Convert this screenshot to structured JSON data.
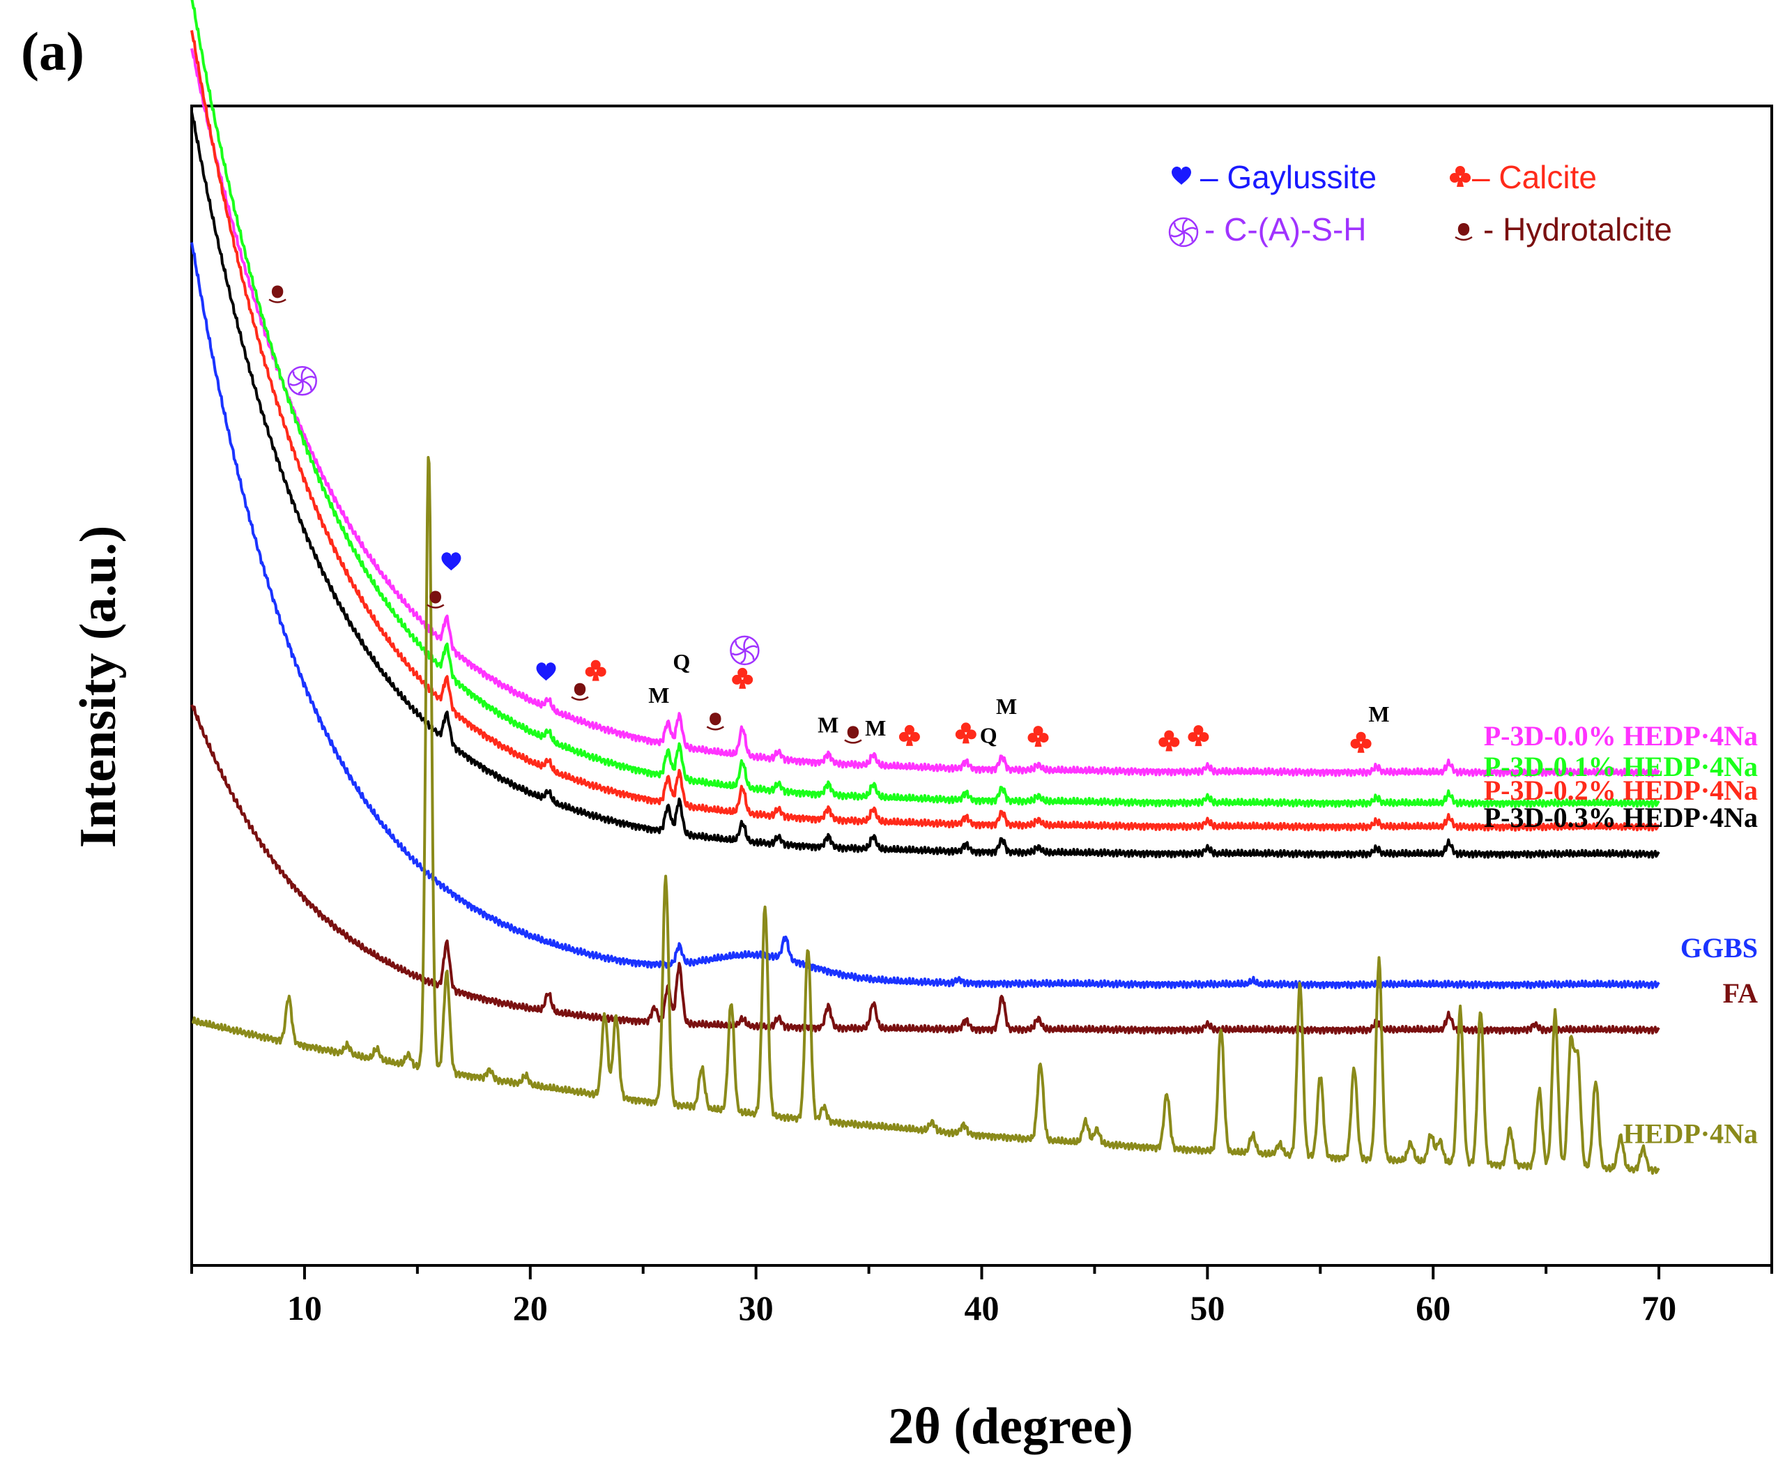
{
  "panel_label": "(a)",
  "chart_data": {
    "type": "line",
    "title": "",
    "xlabel": "2θ (degree)",
    "ylabel": "Intensity (a.u.)",
    "xlim": [
      5,
      75
    ],
    "x_ticks": [
      10,
      20,
      30,
      40,
      50,
      60,
      70
    ],
    "y_ticks_shown": false,
    "grid": false,
    "legend": {
      "placement": "top-right",
      "entries": [
        {
          "symbol": "heart-icon",
          "text": "– Gaylussite",
          "color": "#1a1aff"
        },
        {
          "symbol": "club-icon",
          "text": "– Calcite",
          "color": "#ff2a1a"
        },
        {
          "symbol": "swirl-icon",
          "text": "- C-(A)-S-H",
          "color": "#a033ff"
        },
        {
          "symbol": "drop-icon",
          "text": "- Hydrotalcite",
          "color": "#7a1010"
        }
      ]
    },
    "series": [
      {
        "name": "P-3D-0.0% HEDP·4Na",
        "color": "#ff33ff",
        "baseline": 2.72,
        "amp": 4.0,
        "decay": 6.5,
        "peaks": [
          [
            16.3,
            0.15
          ],
          [
            20.8,
            0.05
          ],
          [
            26.1,
            0.12
          ],
          [
            26.6,
            0.17
          ],
          [
            29.4,
            0.15
          ],
          [
            31.0,
            0.04
          ],
          [
            33.2,
            0.05
          ],
          [
            35.2,
            0.06
          ],
          [
            39.3,
            0.04
          ],
          [
            40.9,
            0.07
          ],
          [
            42.5,
            0.03
          ],
          [
            50.0,
            0.03
          ],
          [
            57.5,
            0.03
          ],
          [
            60.7,
            0.05
          ]
        ]
      },
      {
        "name": "P-3D-0.1% HEDP·4Na",
        "color": "#1aff1a",
        "baseline": 2.55,
        "amp": 4.45,
        "decay": 6.2,
        "peaks": [
          [
            16.3,
            0.15
          ],
          [
            20.8,
            0.05
          ],
          [
            26.1,
            0.14
          ],
          [
            26.6,
            0.18
          ],
          [
            29.4,
            0.14
          ],
          [
            31.0,
            0.04
          ],
          [
            33.2,
            0.06
          ],
          [
            35.2,
            0.07
          ],
          [
            39.3,
            0.04
          ],
          [
            40.9,
            0.07
          ],
          [
            42.5,
            0.03
          ],
          [
            50.0,
            0.03
          ],
          [
            57.5,
            0.03
          ],
          [
            60.7,
            0.05
          ]
        ]
      },
      {
        "name": "P-3D-0.2% HEDP·4Na",
        "color": "#ff2a1a",
        "baseline": 2.42,
        "amp": 4.4,
        "decay": 6.0,
        "peaks": [
          [
            16.3,
            0.15
          ],
          [
            20.8,
            0.05
          ],
          [
            26.1,
            0.14
          ],
          [
            26.6,
            0.18
          ],
          [
            29.4,
            0.14
          ],
          [
            31.0,
            0.04
          ],
          [
            33.2,
            0.06
          ],
          [
            35.2,
            0.07
          ],
          [
            39.3,
            0.04
          ],
          [
            40.9,
            0.07
          ],
          [
            42.5,
            0.03
          ],
          [
            50.0,
            0.03
          ],
          [
            57.5,
            0.03
          ],
          [
            60.7,
            0.05
          ]
        ]
      },
      {
        "name": "P-3D-0.3% HEDP·4Na",
        "color": "#000000",
        "baseline": 2.27,
        "amp": 4.1,
        "decay": 6.0,
        "peaks": [
          [
            16.3,
            0.15
          ],
          [
            20.8,
            0.05
          ],
          [
            26.1,
            0.14
          ],
          [
            26.6,
            0.18
          ],
          [
            29.4,
            0.1
          ],
          [
            31.0,
            0.04
          ],
          [
            33.2,
            0.06
          ],
          [
            35.2,
            0.07
          ],
          [
            39.3,
            0.04
          ],
          [
            40.9,
            0.07
          ],
          [
            42.5,
            0.03
          ],
          [
            50.0,
            0.03
          ],
          [
            57.5,
            0.03
          ],
          [
            60.7,
            0.06
          ]
        ]
      },
      {
        "name": "GGBS",
        "color": "#1a33ff",
        "baseline": 1.55,
        "amp": 4.1,
        "decay": 5.5,
        "hump": [
          30.2,
          0.12,
          3.2
        ],
        "peaks": [
          [
            26.6,
            0.1
          ],
          [
            31.3,
            0.12
          ],
          [
            39.0,
            0.02
          ],
          [
            52.0,
            0.02
          ]
        ]
      },
      {
        "name": "FA",
        "color": "#7a1010",
        "baseline": 1.3,
        "amp": 1.8,
        "decay": 5.5,
        "peaks": [
          [
            16.3,
            0.25
          ],
          [
            20.8,
            0.1
          ],
          [
            25.5,
            0.08
          ],
          [
            26.1,
            0.2
          ],
          [
            26.6,
            0.32
          ],
          [
            29.4,
            0.04
          ],
          [
            31.0,
            0.05
          ],
          [
            33.2,
            0.12
          ],
          [
            35.2,
            0.14
          ],
          [
            39.3,
            0.05
          ],
          [
            40.9,
            0.18
          ],
          [
            42.5,
            0.06
          ],
          [
            50.0,
            0.03
          ],
          [
            57.5,
            0.04
          ],
          [
            60.7,
            0.08
          ],
          [
            64.5,
            0.03
          ]
        ]
      },
      {
        "name": "HEDP·4Na",
        "color": "#8a8a1a",
        "baseline": 0.4,
        "amp": 0.95,
        "decay": 32,
        "peaks": [
          [
            9.3,
            0.25
          ],
          [
            11.9,
            0.05
          ],
          [
            13.2,
            0.06
          ],
          [
            14.6,
            0.06
          ],
          [
            15.5,
            3.4
          ],
          [
            16.3,
            0.55
          ],
          [
            18.2,
            0.05
          ],
          [
            19.8,
            0.05
          ],
          [
            23.3,
            0.45
          ],
          [
            23.8,
            0.45
          ],
          [
            26.0,
            1.25
          ],
          [
            27.6,
            0.22
          ],
          [
            28.9,
            0.6
          ],
          [
            30.4,
            1.15
          ],
          [
            32.3,
            0.95
          ],
          [
            33.0,
            0.08
          ],
          [
            37.8,
            0.05
          ],
          [
            39.2,
            0.05
          ],
          [
            42.6,
            0.42
          ],
          [
            44.6,
            0.12
          ],
          [
            45.1,
            0.08
          ],
          [
            48.2,
            0.3
          ],
          [
            50.6,
            0.68
          ],
          [
            52.0,
            0.1
          ],
          [
            53.2,
            0.06
          ],
          [
            54.1,
            0.95
          ],
          [
            55.0,
            0.45
          ],
          [
            56.5,
            0.5
          ],
          [
            57.6,
            1.1
          ],
          [
            59.0,
            0.1
          ],
          [
            59.9,
            0.15
          ],
          [
            60.3,
            0.12
          ],
          [
            61.2,
            0.85
          ],
          [
            62.1,
            0.85
          ],
          [
            63.4,
            0.2
          ],
          [
            64.7,
            0.42
          ],
          [
            65.4,
            0.85
          ],
          [
            66.1,
            0.68
          ],
          [
            66.4,
            0.6
          ],
          [
            67.2,
            0.48
          ],
          [
            68.3,
            0.18
          ],
          [
            69.3,
            0.12
          ]
        ]
      }
    ],
    "annotations": [
      {
        "type": "drop-icon",
        "x": 8.8,
        "series": "P-3D-0.0% HEDP·4Na",
        "level": "upper"
      },
      {
        "type": "swirl-icon",
        "x": 9.9,
        "series": "P-3D-0.0% HEDP·4Na",
        "level": "lower"
      },
      {
        "type": "drop-icon",
        "x": 15.8,
        "series": "P-3D-0.0% HEDP·4Na",
        "level": "lower"
      },
      {
        "type": "heart-icon",
        "x": 16.5,
        "series": "P-3D-0.0% HEDP·4Na",
        "level": "upper"
      },
      {
        "type": "heart-icon",
        "x": 20.7,
        "series": "P-3D-0.0% HEDP·4Na",
        "level": "lower"
      },
      {
        "type": "drop-icon",
        "x": 22.2,
        "series": "P-3D-0.0% HEDP·4Na",
        "level": "lower"
      },
      {
        "type": "club-icon",
        "x": 22.9,
        "series": "P-3D-0.0% HEDP·4Na",
        "level": "upper"
      },
      {
        "type": "letter",
        "text": "M",
        "x": 25.7,
        "series": "P-3D-0.0% HEDP·4Na",
        "level": "lower"
      },
      {
        "type": "letter",
        "text": "Q",
        "x": 26.7,
        "series": "P-3D-0.0% HEDP·4Na",
        "level": "upper"
      },
      {
        "type": "drop-icon",
        "x": 28.2,
        "series": "P-3D-0.0% HEDP·4Na",
        "level": "lower"
      },
      {
        "type": "swirl-icon",
        "x": 29.5,
        "series": "P-3D-0.0% HEDP·4Na",
        "level": "high"
      },
      {
        "type": "club-icon",
        "x": 29.4,
        "series": "P-3D-0.0% HEDP·4Na",
        "level": "upper"
      },
      {
        "type": "letter",
        "text": "M",
        "x": 33.2,
        "series": "P-3D-0.0% HEDP·4Na",
        "level": "lower"
      },
      {
        "type": "drop-icon",
        "x": 34.3,
        "series": "P-3D-0.0% HEDP·4Na",
        "level": "lower"
      },
      {
        "type": "letter",
        "text": "M",
        "x": 35.3,
        "series": "P-3D-0.0% HEDP·4Na",
        "level": "lower"
      },
      {
        "type": "club-icon",
        "x": 36.8,
        "series": "P-3D-0.0% HEDP·4Na",
        "level": "lower"
      },
      {
        "type": "club-icon",
        "x": 39.3,
        "series": "P-3D-0.0% HEDP·4Na",
        "level": "lower"
      },
      {
        "type": "letter",
        "text": "Q",
        "x": 40.3,
        "series": "P-3D-0.0% HEDP·4Na",
        "level": "lower"
      },
      {
        "type": "letter",
        "text": "M",
        "x": 41.1,
        "series": "P-3D-0.0% HEDP·4Na",
        "level": "upper"
      },
      {
        "type": "club-icon",
        "x": 42.5,
        "series": "P-3D-0.0% HEDP·4Na",
        "level": "lower"
      },
      {
        "type": "club-icon",
        "x": 48.3,
        "series": "P-3D-0.0% HEDP·4Na",
        "level": "lower"
      },
      {
        "type": "club-icon",
        "x": 49.6,
        "series": "P-3D-0.0% HEDP·4Na",
        "level": "lower"
      },
      {
        "type": "club-icon",
        "x": 56.8,
        "series": "P-3D-0.0% HEDP·4Na",
        "level": "lower"
      },
      {
        "type": "letter",
        "text": "M",
        "x": 57.6,
        "series": "P-3D-0.0% HEDP·4Na",
        "level": "upper"
      }
    ]
  }
}
